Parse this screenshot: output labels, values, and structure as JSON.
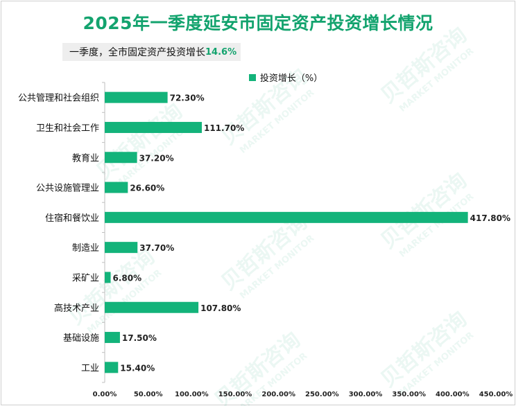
{
  "title": "2025年一季度延安市固定资产投资增长情况",
  "subtitle": {
    "text": "一季度，全市固定资产投资增长",
    "value": "14.6%"
  },
  "watermark": {
    "cn": "贝哲斯咨询",
    "en": "MARKET MONITOR"
  },
  "colors": {
    "title": "#13a36e",
    "bar": "#13b37a"
  },
  "chart_data": {
    "type": "bar",
    "orientation": "horizontal",
    "legend": "投资增长（%）",
    "legend_position": "top",
    "categories": [
      "公共管理和社会组织",
      "卫生和社会工作",
      "教育业",
      "公共设施管理业",
      "住宿和餐饮业",
      "制造业",
      "采矿业",
      "高技术产业",
      "基础设施",
      "工业"
    ],
    "values": [
      72.3,
      111.7,
      37.2,
      26.6,
      417.8,
      37.7,
      6.8,
      107.8,
      17.5,
      15.4
    ],
    "value_labels": [
      "72.30%",
      "111.70%",
      "37.20%",
      "26.60%",
      "417.80%",
      "37.70%",
      "6.80%",
      "107.80%",
      "17.50%",
      "15.40%"
    ],
    "x_ticks": [
      "0.00%",
      "50.00%",
      "100.00%",
      "150.00%",
      "200.00%",
      "250.00%",
      "300.00%",
      "350.00%",
      "400.00%",
      "450.00%"
    ],
    "xlim": [
      0,
      450
    ],
    "grid": false
  }
}
